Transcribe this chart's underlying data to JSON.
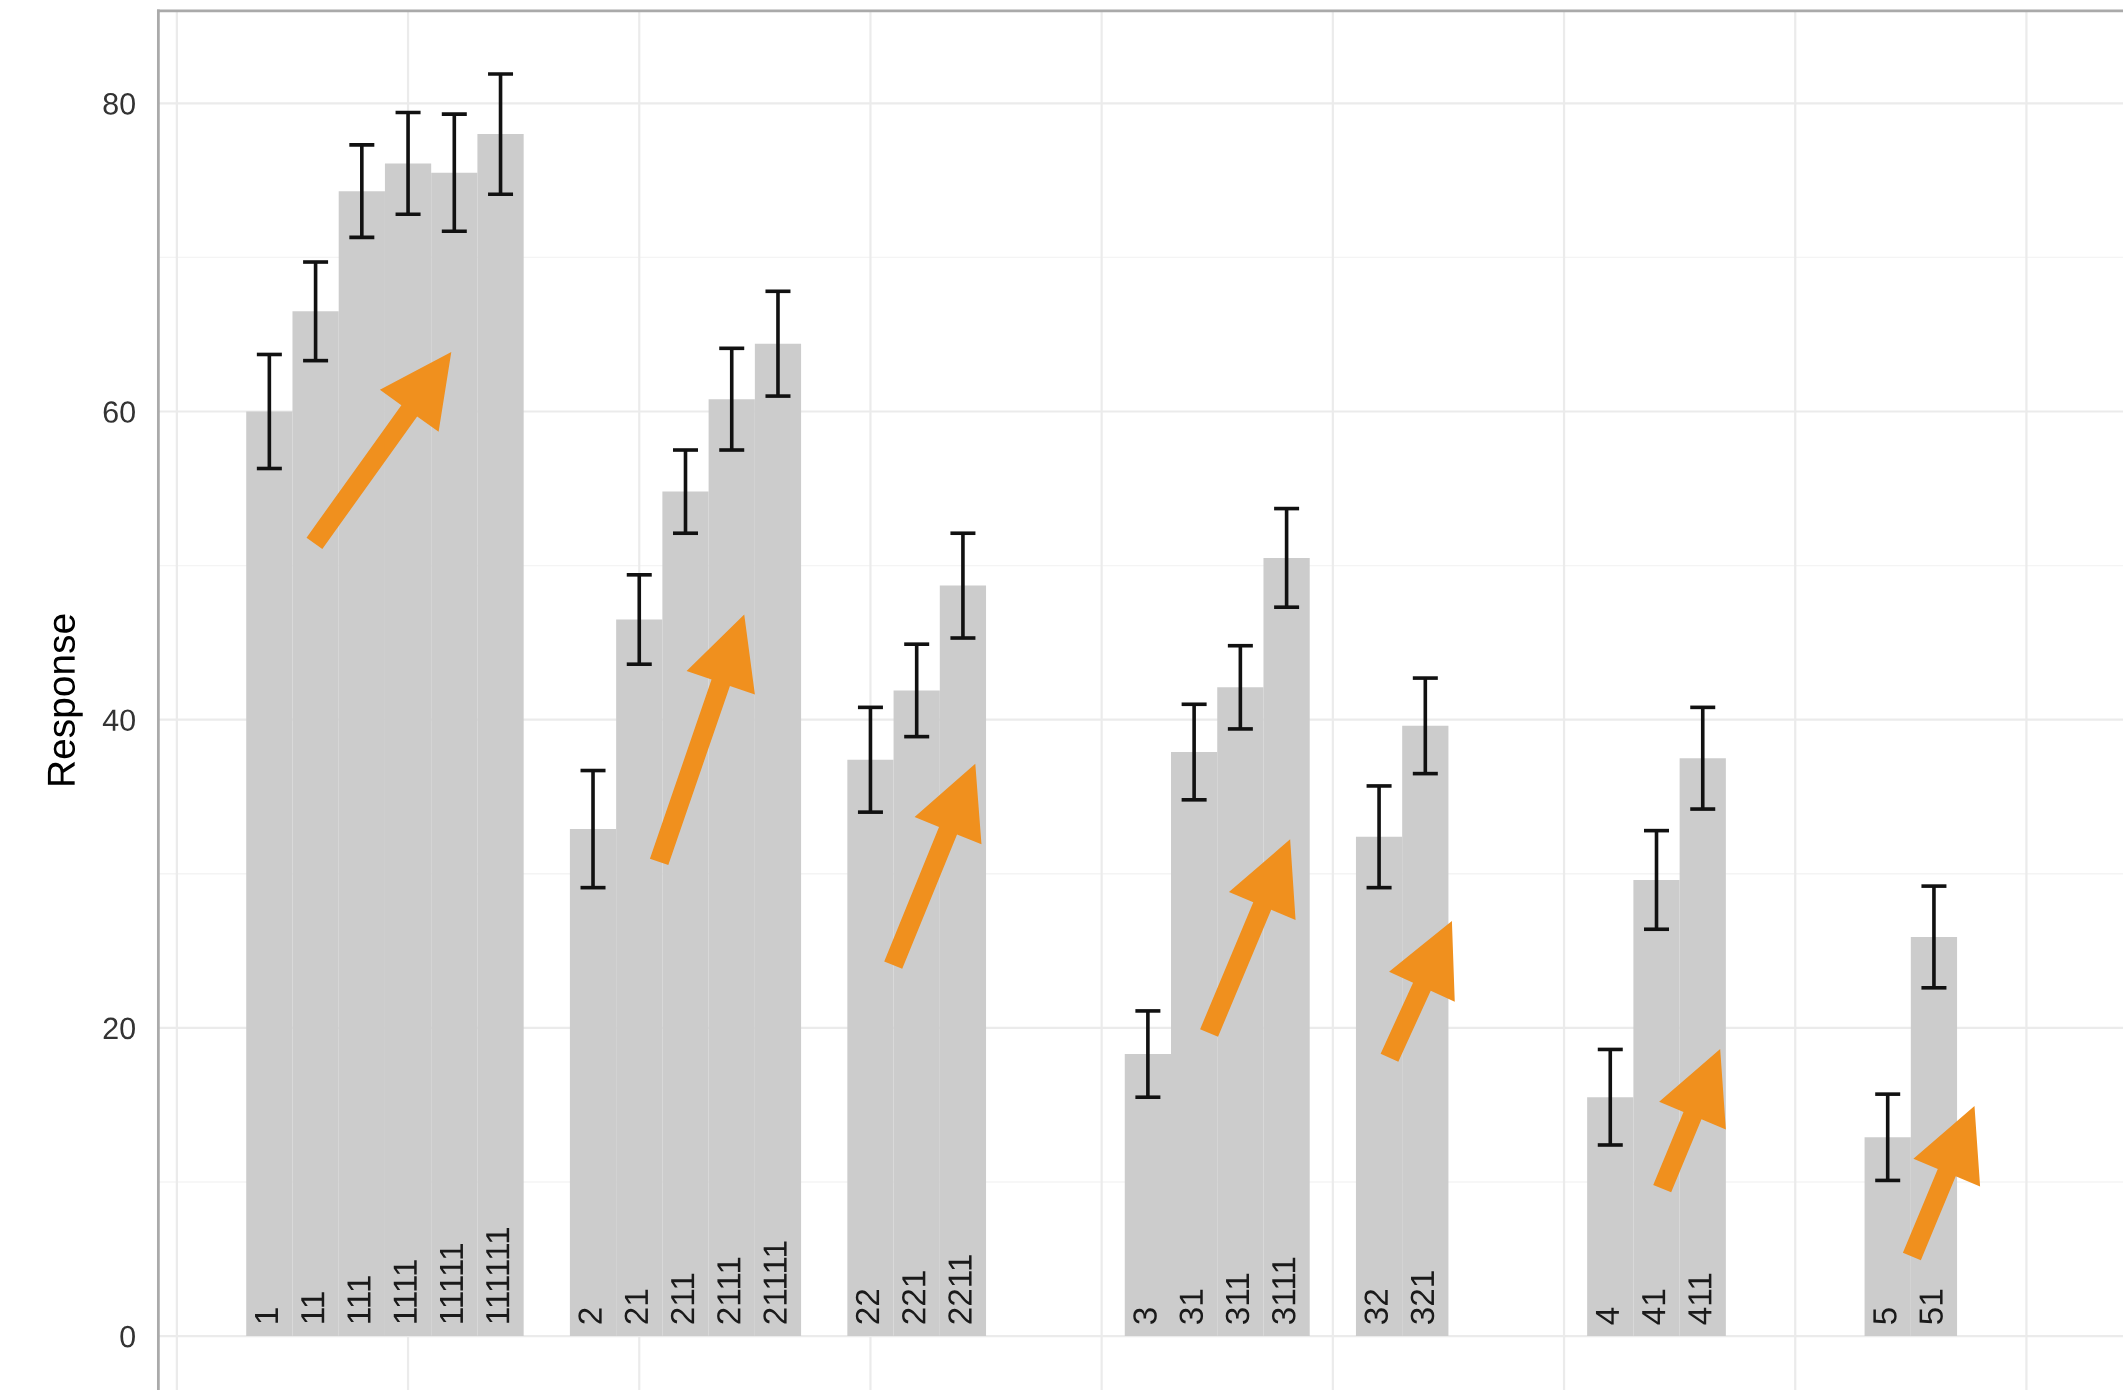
{
  "chart_data": {
    "type": "bar",
    "ylabel": "Response",
    "categories": [
      "1",
      "11",
      "111",
      "1111",
      "11111",
      "111111",
      null,
      "2",
      "21",
      "211",
      "2111",
      "21111",
      null,
      "22",
      "221",
      "2211",
      null,
      null,
      null,
      "3",
      "31",
      "311",
      "3111",
      null,
      "32",
      "321",
      null,
      null,
      null,
      "4",
      "41",
      "411",
      null,
      null,
      null,
      "5",
      "51"
    ],
    "values": [
      60,
      66.5,
      74.3,
      76.1,
      75.5,
      78,
      null,
      32.9,
      46.5,
      54.8,
      60.8,
      64.4,
      null,
      37.4,
      41.9,
      48.7,
      null,
      null,
      null,
      18.3,
      37.9,
      42.1,
      50.5,
      null,
      32.4,
      39.6,
      null,
      null,
      null,
      15.5,
      29.6,
      37.5,
      null,
      null,
      null,
      12.9,
      25.9
    ],
    "errors": [
      3.7,
      3.2,
      3,
      3.3,
      3.8,
      3.9,
      null,
      3.8,
      2.9,
      2.7,
      3.3,
      3.4,
      null,
      3.4,
      3,
      3.4,
      null,
      null,
      null,
      2.8,
      3.1,
      2.7,
      3.2,
      null,
      3.3,
      3.1,
      null,
      null,
      null,
      3.1,
      3.2,
      3.3,
      null,
      null,
      null,
      2.8,
      3.3
    ],
    "color": "#cccccc",
    "ylim": [
      -3.5,
      86
    ],
    "yticks": [
      0,
      20,
      40,
      60,
      80
    ],
    "grid": true
  }
}
